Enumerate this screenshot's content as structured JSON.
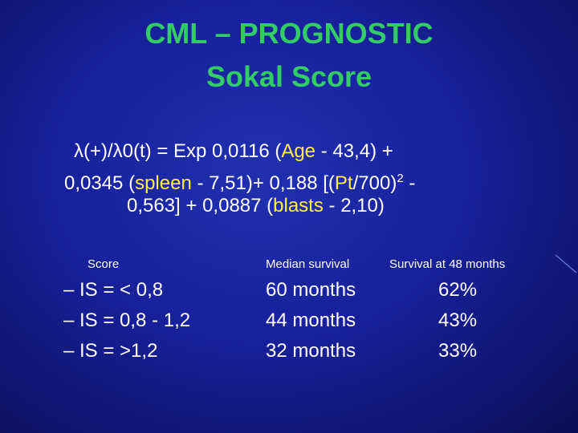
{
  "title": {
    "line1": "CML – PROGNOSTIC",
    "line2": "Sokal Score"
  },
  "formula": {
    "line1": {
      "a": "λ(+)/λ0(t) = Exp 0,0116 (",
      "age": "Age",
      "b": " - 43,4) +"
    },
    "line2": {
      "a": "0,0345 (",
      "spleen": "spleen",
      "b": " - 7,51)+ 0,188 [(",
      "pt": "Pt",
      "c": "/700)",
      "sup": "2",
      "d": " -"
    },
    "line3": {
      "a": "0,563] + 0,0887 (",
      "blasts": "blasts",
      "b": " - 2,10)"
    }
  },
  "table": {
    "headers": {
      "score": "Score",
      "median": "Median survival",
      "survival48": "Survival at 48 months"
    },
    "rows": [
      {
        "score": "– IS = < 0,8",
        "median": "60 months",
        "survival48": "62%"
      },
      {
        "score": "– IS = 0,8 - 1,2",
        "median": "44 months",
        "survival48": "43%"
      },
      {
        "score": "– IS = >1,2",
        "median": "32 months",
        "survival48": "33%"
      }
    ]
  },
  "colors": {
    "title": "#33cc66",
    "highlight": "#ffee44",
    "text": "#ffffff",
    "background": "#18209a"
  }
}
